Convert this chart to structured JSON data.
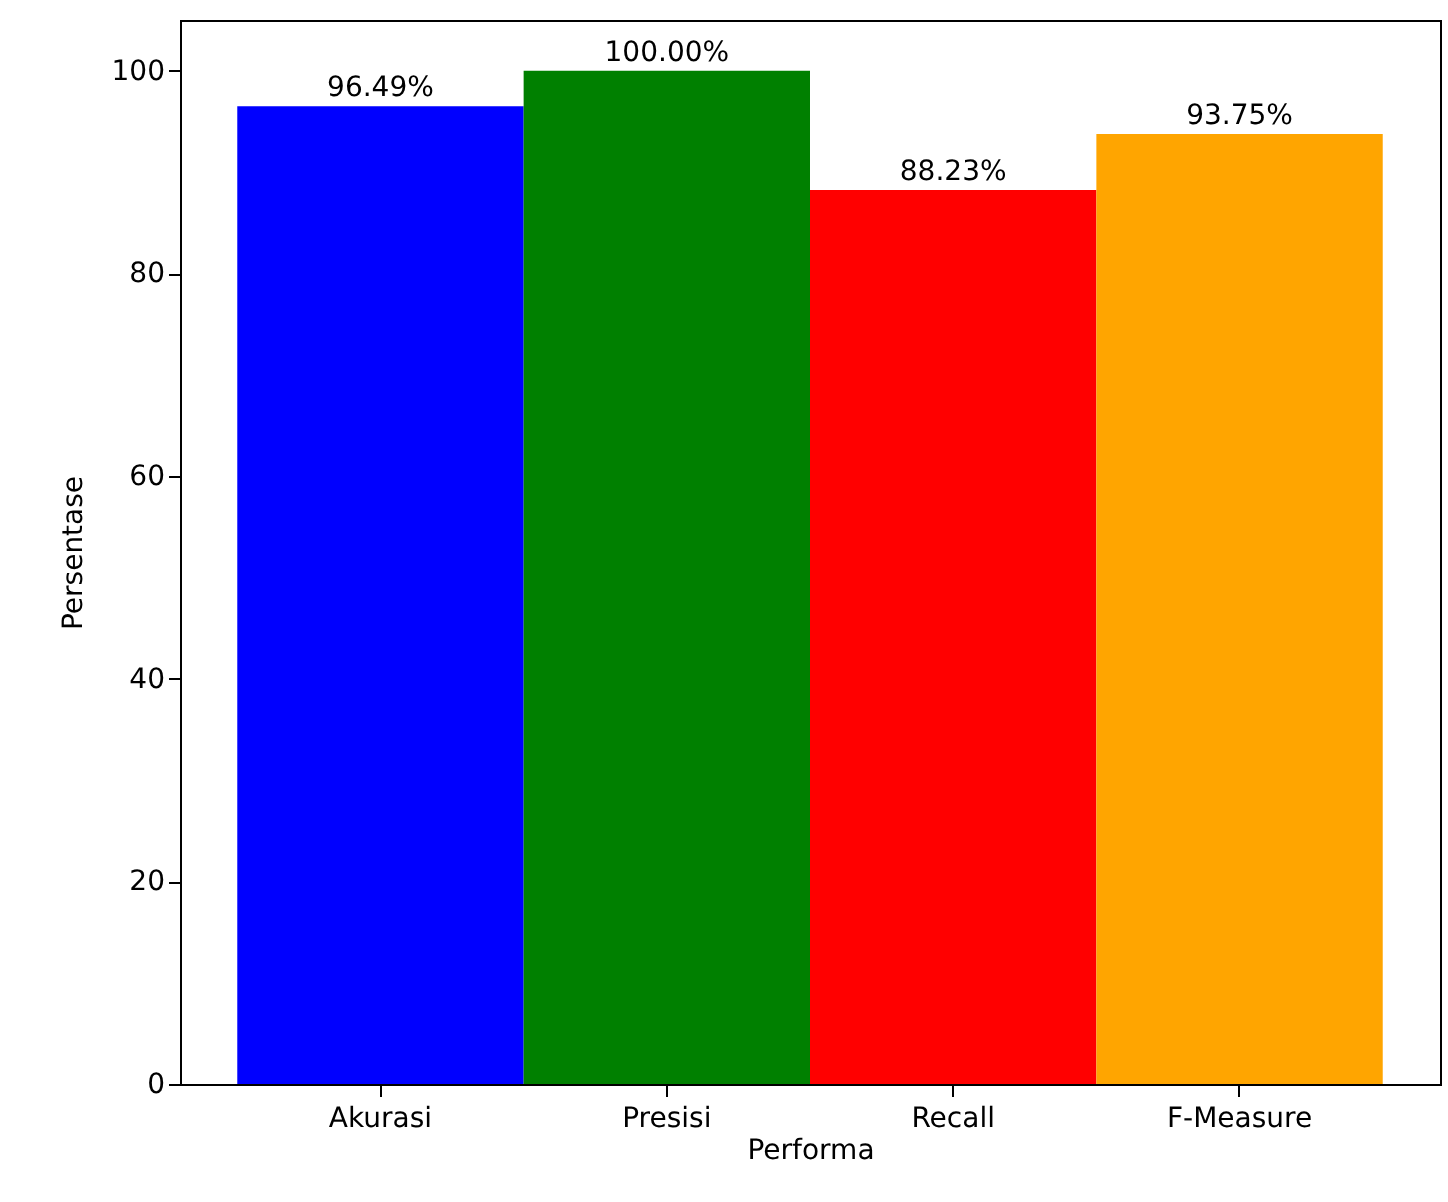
{
  "chart_data": {
    "type": "bar",
    "xlabel": "Performa",
    "ylabel": "Persentase",
    "categories": [
      "Akurasi",
      "Presisi",
      "Recall",
      "F-Measure"
    ],
    "values": [
      96.49,
      100.0,
      88.23,
      93.75
    ],
    "colors": [
      "#0000ff",
      "#008000",
      "#ff0000",
      "#ffa500"
    ],
    "value_labels": [
      "96.49%",
      "100.00%",
      "88.23%",
      "93.75%"
    ],
    "ylim": [
      0,
      105
    ],
    "yticks": [
      0,
      20,
      40,
      60,
      80,
      100
    ],
    "grid": false
  }
}
